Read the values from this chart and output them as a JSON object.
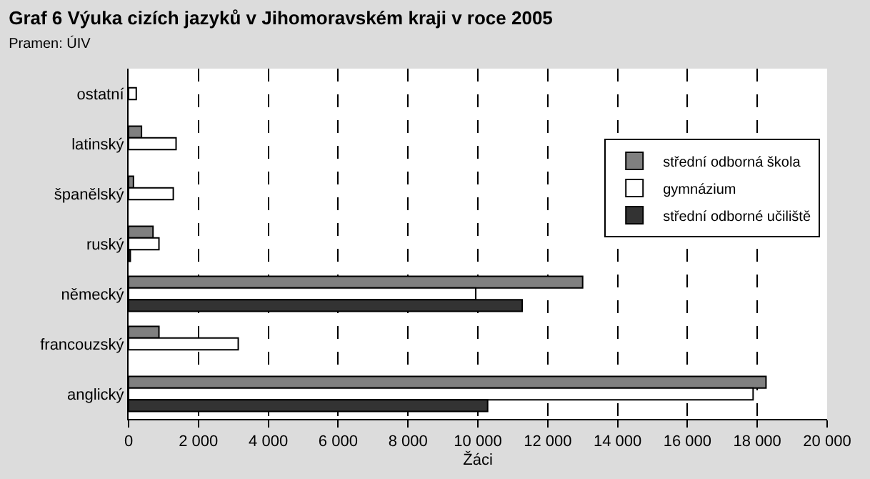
{
  "chart_data": {
    "type": "bar",
    "orientation": "horizontal",
    "title": "Graf 6 Výuka cizích jazyků v Jihomoravském kraji v roce 2005",
    "subtitle": "Pramen: ÚIV",
    "xlabel": "Žáci",
    "categories": [
      "ostatní",
      "latinský",
      "španělský",
      "ruský",
      "německý",
      "francouzský",
      "anglický"
    ],
    "series": [
      {
        "name": "střední odborná škola",
        "color": "#808080",
        "values": [
          null,
          370,
          140,
          700,
          13000,
          870,
          18250
        ]
      },
      {
        "name": "gymnázium",
        "color": "#ffffff",
        "values": [
          220,
          1360,
          1280,
          870,
          9940,
          3140,
          17880
        ]
      },
      {
        "name": "střední odborné učiliště",
        "color": "#333333",
        "values": [
          null,
          null,
          null,
          50,
          11270,
          null,
          10280
        ]
      }
    ],
    "xlim": [
      0,
      20000
    ],
    "xticks": [
      {
        "value": 0,
        "label": "0"
      },
      {
        "value": 2000,
        "label": "2 000"
      },
      {
        "value": 4000,
        "label": "4 000"
      },
      {
        "value": 6000,
        "label": "6 000"
      },
      {
        "value": 8000,
        "label": "8 000"
      },
      {
        "value": 10000,
        "label": "10 000"
      },
      {
        "value": 12000,
        "label": "12 000"
      },
      {
        "value": 14000,
        "label": "14 000"
      },
      {
        "value": 16000,
        "label": "16 000"
      },
      {
        "value": 18000,
        "label": "18 000"
      },
      {
        "value": 20000,
        "label": "20 000"
      }
    ],
    "grid": "x",
    "legend": "right"
  }
}
